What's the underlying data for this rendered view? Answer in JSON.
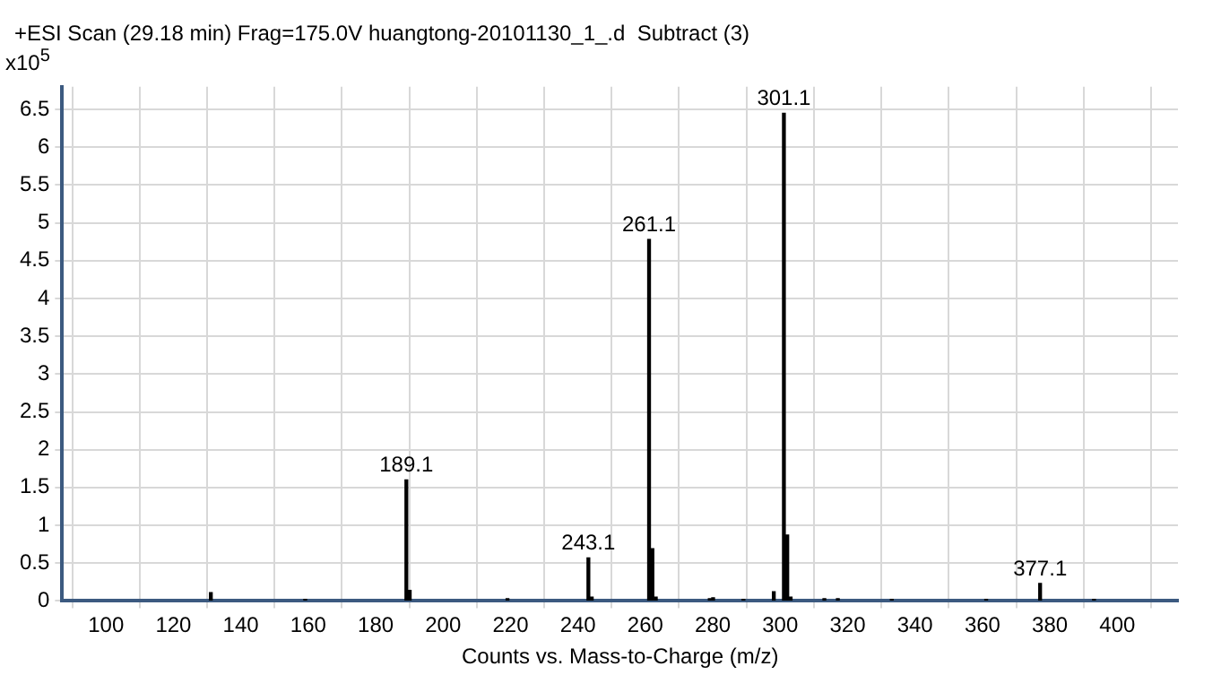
{
  "chart_data": {
    "type": "bar",
    "title": "+ESI Scan (29.18 min) Frag=175.0V huangtong-20101130_1_.d  Subtract (3)",
    "ylabel": "x10$^{5}$",
    "xlabel": "Counts vs. Mass-to-Charge (m/z)",
    "x": [
      131.1,
      159.1,
      189.1,
      190.1,
      219.1,
      243.1,
      244.1,
      261.1,
      262.1,
      263.1,
      279.1,
      280.1,
      289.1,
      298.1,
      301.1,
      302.1,
      303.1,
      313.1,
      317.1,
      333.1,
      361.1,
      377.1,
      393.1
    ],
    "values": [
      0.11,
      0.02,
      1.6,
      0.14,
      0.03,
      0.57,
      0.05,
      4.78,
      0.69,
      0.05,
      0.03,
      0.04,
      0.02,
      0.12,
      6.45,
      0.87,
      0.05,
      0.03,
      0.03,
      0.02,
      0.02,
      0.23,
      0.02
    ],
    "color": "#000000",
    "annotations": [
      {
        "text": "189.1",
        "x": 189.1,
        "y": 1.6
      },
      {
        "text": "243.1",
        "x": 243.1,
        "y": 0.57
      },
      {
        "text": "261.1",
        "x": 261.1,
        "y": 4.78
      },
      {
        "text": "301.1",
        "x": 301.1,
        "y": 6.45
      },
      {
        "text": "377.1",
        "x": 377.1,
        "y": 0.23
      }
    ],
    "xlim": [
      87,
      418
    ],
    "xticks": [
      100,
      120,
      140,
      160,
      180,
      200,
      220,
      240,
      260,
      280,
      300,
      320,
      340,
      360,
      380,
      400
    ],
    "ylim": [
      0,
      6.8
    ],
    "yticks": [
      0,
      0.5,
      1,
      1.5,
      2,
      2.5,
      3,
      3.5,
      4,
      4.5,
      5,
      5.5,
      6,
      6.5
    ],
    "grid": true,
    "legend": false
  }
}
